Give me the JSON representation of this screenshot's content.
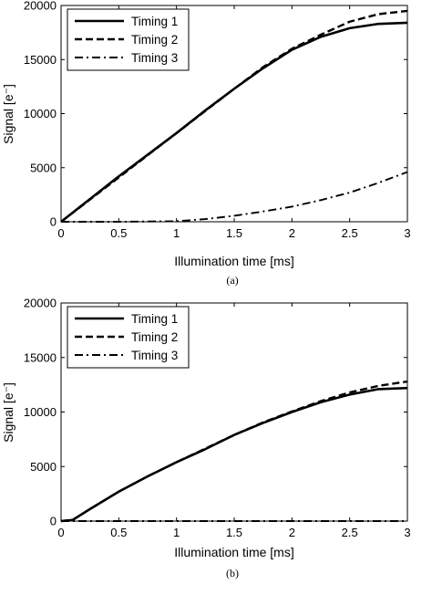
{
  "chart_data": [
    {
      "type": "line",
      "panel_label": "(a)",
      "xlabel": "Illumination time [ms]",
      "ylabel": "Signal [e⁻]",
      "xlim": [
        0,
        3
      ],
      "ylim": [
        0,
        20000
      ],
      "xticks": [
        "0",
        "0.5",
        "1",
        "1.5",
        "2",
        "2.5",
        "3"
      ],
      "yticks": [
        "0",
        "5000",
        "10000",
        "15000",
        "20000"
      ],
      "legend_position": "top-left",
      "series": [
        {
          "name": "Timing 1",
          "style": "solid",
          "points": [
            [
              0,
              0
            ],
            [
              0.25,
              2100
            ],
            [
              0.5,
              4200
            ],
            [
              0.75,
              6200
            ],
            [
              1.0,
              8200
            ],
            [
              1.25,
              10300
            ],
            [
              1.5,
              12300
            ],
            [
              1.75,
              14200
            ],
            [
              2.0,
              15900
            ],
            [
              2.25,
              17100
            ],
            [
              2.5,
              17900
            ],
            [
              2.75,
              18300
            ],
            [
              3.0,
              18400
            ]
          ]
        },
        {
          "name": "Timing 2",
          "style": "dashed",
          "points": [
            [
              0,
              0
            ],
            [
              0.25,
              2050
            ],
            [
              0.5,
              4100
            ],
            [
              0.75,
              6150
            ],
            [
              1.0,
              8200
            ],
            [
              1.25,
              10250
            ],
            [
              1.5,
              12300
            ],
            [
              1.75,
              14300
            ],
            [
              2.0,
              16000
            ],
            [
              2.25,
              17300
            ],
            [
              2.5,
              18500
            ],
            [
              2.75,
              19200
            ],
            [
              3.0,
              19500
            ]
          ]
        },
        {
          "name": "Timing 3",
          "style": "dashdot",
          "points": [
            [
              0,
              0
            ],
            [
              0.5,
              0
            ],
            [
              1.0,
              50
            ],
            [
              1.25,
              250
            ],
            [
              1.5,
              550
            ],
            [
              1.75,
              950
            ],
            [
              2.0,
              1400
            ],
            [
              2.25,
              2000
            ],
            [
              2.5,
              2700
            ],
            [
              2.75,
              3600
            ],
            [
              3.0,
              4600
            ]
          ]
        }
      ]
    },
    {
      "type": "line",
      "panel_label": "(b)",
      "xlabel": "Illumination time [ms]",
      "ylabel": "Signal [e⁻]",
      "xlim": [
        0,
        3
      ],
      "ylim": [
        0,
        20000
      ],
      "xticks": [
        "0",
        "0.5",
        "1",
        "1.5",
        "2",
        "2.5",
        "3"
      ],
      "yticks": [
        "0",
        "5000",
        "10000",
        "15000",
        "20000"
      ],
      "legend_position": "top-left",
      "series": [
        {
          "name": "Timing 1",
          "style": "solid",
          "points": [
            [
              0,
              0
            ],
            [
              0.1,
              100
            ],
            [
              0.25,
              1100
            ],
            [
              0.5,
              2700
            ],
            [
              0.75,
              4100
            ],
            [
              1.0,
              5400
            ],
            [
              1.25,
              6600
            ],
            [
              1.5,
              7900
            ],
            [
              1.75,
              9000
            ],
            [
              2.0,
              10000
            ],
            [
              2.25,
              10900
            ],
            [
              2.5,
              11600
            ],
            [
              2.75,
              12100
            ],
            [
              3.0,
              12200
            ]
          ]
        },
        {
          "name": "Timing 2",
          "style": "dashed",
          "points": [
            [
              0,
              0
            ],
            [
              0.1,
              100
            ],
            [
              0.25,
              1100
            ],
            [
              0.5,
              2700
            ],
            [
              0.75,
              4100
            ],
            [
              1.0,
              5400
            ],
            [
              1.25,
              6650
            ],
            [
              1.5,
              7900
            ],
            [
              1.75,
              9050
            ],
            [
              2.0,
              10050
            ],
            [
              2.25,
              11000
            ],
            [
              2.5,
              11800
            ],
            [
              2.75,
              12400
            ],
            [
              3.0,
              12800
            ]
          ]
        },
        {
          "name": "Timing 3",
          "style": "dashdot",
          "points": [
            [
              0,
              0
            ],
            [
              0.5,
              0
            ],
            [
              1.0,
              0
            ],
            [
              1.5,
              0
            ],
            [
              2.0,
              0
            ],
            [
              2.5,
              0
            ],
            [
              3.0,
              0
            ]
          ]
        }
      ]
    }
  ]
}
